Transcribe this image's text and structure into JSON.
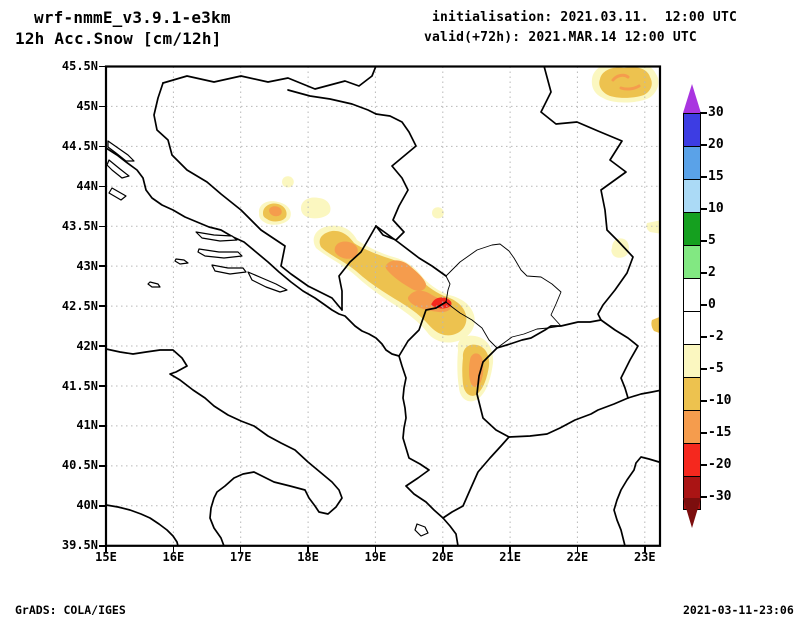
{
  "header": {
    "model": "wrf-nmmE_v3.9.1-e3km",
    "variable": "12h Acc.Snow [cm/12h]",
    "initialisation": "initialisation: 2021.03.11.  12:00 UTC",
    "valid": "valid(+72h): 2021.MAR.14 12:00 UTC"
  },
  "footer": {
    "credit": "GrADS: COLA/IGES",
    "timestamp": "2021-03-11-23:06"
  },
  "chart_data": {
    "type": "heatmap",
    "title": "12h Acc.Snow [cm/12h]",
    "model": "wrf-nmmE_v3.9.1-e3km",
    "init_time": "2021.03.11. 12:00 UTC",
    "valid_time": "2021.MAR.14 12:00 UTC",
    "lead_hours": 72,
    "x_axis": {
      "ticks": [
        "15E",
        "16E",
        "17E",
        "18E",
        "19E",
        "20E",
        "21E",
        "22E",
        "23E"
      ],
      "range_deg_east": [
        15,
        23.2
      ],
      "grid": true
    },
    "y_axis": {
      "ticks": [
        "45.5N",
        "45N",
        "44.5N",
        "44N",
        "43.5N",
        "43N",
        "42.5N",
        "42N",
        "41.5N",
        "41N",
        "40.5N",
        "40N",
        "39.5N"
      ],
      "range_deg_north": [
        39.5,
        45.5
      ],
      "grid": true
    },
    "colorbar": {
      "position": "right",
      "labels_top_to_bottom": [
        "30",
        "20",
        "15",
        "10",
        "5",
        "2",
        "0",
        "-2",
        "-5",
        "-10",
        "-15",
        "-20",
        "-30"
      ],
      "segment_colors_top_to_bottom": [
        "#3d3de3",
        "#5aa2e8",
        "#abdaf6",
        "#15a01f",
        "#82e882",
        "#ffffff",
        "#ffffff",
        "#fbf7c0",
        "#edc24f",
        "#f59c4d",
        "#f5281e",
        "#aa1414"
      ],
      "over_arrow_color": "#a935e0",
      "under_arrow_color": "#7c0e0e"
    },
    "shaded_regions": [
      {
        "name": "northeast-corner-spot",
        "approx_center": "22.8E 45.3N",
        "bands": [
          "pale",
          "gold",
          "orange-core"
        ]
      },
      {
        "name": "central-bosnia-spot",
        "approx_center": "17.5E 43.55N",
        "bands": [
          "gold",
          "orange-core"
        ]
      },
      {
        "name": "central-bosnia-pale-spot",
        "approx_center": "18.1E 43.6N",
        "bands": [
          "pale"
        ]
      },
      {
        "name": "dinaric-montenegro-band",
        "approx_extent": "18.2E-20.3E, 42.4N-43.5N",
        "bands": [
          "pale",
          "gold",
          "orange",
          "red-core"
        ]
      },
      {
        "name": "sar-mountains-spot",
        "approx_center": "20.4E 41.8N",
        "bands": [
          "pale",
          "gold",
          "orange-core"
        ]
      },
      {
        "name": "east-serbia-pale-spot",
        "approx_center": "22.6E 43.25N",
        "bands": [
          "pale"
        ]
      },
      {
        "name": "right-edge-slivers",
        "approx_center": "23.2E 42.3N-43.5N",
        "bands": [
          "pale",
          "gold"
        ]
      }
    ]
  }
}
